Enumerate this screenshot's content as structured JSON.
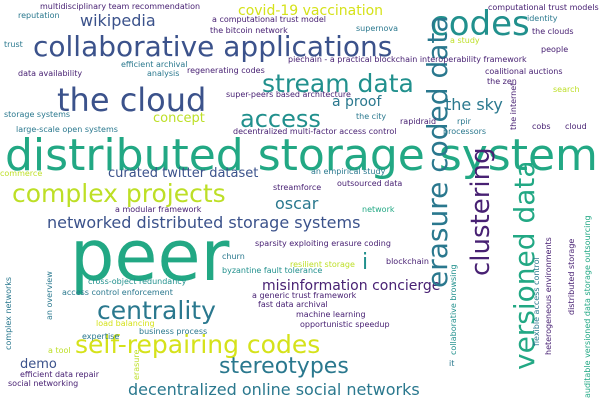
{
  "palette": {
    "navy": "#3b528b",
    "indigo": "#472c7a",
    "purple": "#482173",
    "teal": "#21908d",
    "sea": "#2a788e",
    "green": "#22a884",
    "lime": "#bddf26",
    "yellow": "#d5e21a"
  },
  "words": [
    {
      "id": "w-peer",
      "text": "peer",
      "color": "green"
    },
    {
      "id": "w-distributed-storage-systems",
      "text": "distributed storage systems",
      "color": "green"
    },
    {
      "id": "w-collaborative-applications",
      "text": "collaborative applications",
      "color": "navy"
    },
    {
      "id": "w-the-cloud",
      "text": "the cloud",
      "color": "navy"
    },
    {
      "id": "w-codes",
      "text": "codes",
      "color": "teal"
    },
    {
      "id": "w-stream-data",
      "text": "stream data",
      "color": "teal"
    },
    {
      "id": "w-access",
      "text": "access",
      "color": "teal"
    },
    {
      "id": "w-complex-projects",
      "text": "complex projects",
      "color": "lime"
    },
    {
      "id": "w-self-repairing-codes",
      "text": "self-repairing codes",
      "color": "yellow"
    },
    {
      "id": "w-centrality",
      "text": "centrality",
      "color": "sea"
    },
    {
      "id": "w-stereotypes",
      "text": "stereotypes",
      "color": "sea"
    },
    {
      "id": "w-decentralized-online-social-networks",
      "text": "decentralized online social networks",
      "color": "sea"
    },
    {
      "id": "w-networked-distributed-storage-systems",
      "text": "networked distributed storage systems",
      "color": "navy"
    },
    {
      "id": "w-misinformation-concierge",
      "text": "misinformation concierge",
      "color": "purple"
    },
    {
      "id": "w-wikipedia",
      "text": "wikipedia",
      "color": "navy"
    },
    {
      "id": "w-covid-19-vaccination",
      "text": "covid-19 vaccination",
      "color": "yellow"
    },
    {
      "id": "w-the-sky",
      "text": "the sky",
      "color": "sea"
    },
    {
      "id": "w-a-proof",
      "text": "a proof",
      "color": "sea"
    },
    {
      "id": "w-concept",
      "text": "concept",
      "color": "lime"
    },
    {
      "id": "w-curated-twitter-dataset",
      "text": "curated twitter dataset",
      "color": "navy"
    },
    {
      "id": "w-oscar",
      "text": "oscar",
      "color": "sea"
    },
    {
      "id": "w-i",
      "text": "i",
      "color": "teal"
    },
    {
      "id": "w-demo",
      "text": "demo",
      "color": "navy"
    },
    {
      "id": "w-erasure-coded-data",
      "text": "erasure coded data",
      "color": "sea"
    },
    {
      "id": "w-clustering",
      "text": "clustering",
      "color": "purple"
    },
    {
      "id": "w-versioned-data",
      "text": "versioned data",
      "color": "green"
    },
    {
      "id": "w-multidisciplinary-team-recommendation",
      "text": "multidisciplinary team recommendation",
      "color": "purple"
    },
    {
      "id": "w-reputation",
      "text": "reputation",
      "color": "sea"
    },
    {
      "id": "w-trust",
      "text": "trust",
      "color": "sea"
    },
    {
      "id": "w-a-computational-trust-model",
      "text": "a computational trust model",
      "color": "purple"
    },
    {
      "id": "w-the-bitcoin-network",
      "text": "the bitcoin network",
      "color": "purple"
    },
    {
      "id": "w-supernova",
      "text": "supernova",
      "color": "sea"
    },
    {
      "id": "w-computational-trust-models",
      "text": "computational trust models",
      "color": "purple"
    },
    {
      "id": "w-identity",
      "text": "identity",
      "color": "sea"
    },
    {
      "id": "w-the-clouds",
      "text": "the clouds",
      "color": "purple"
    },
    {
      "id": "w-a-study",
      "text": "a study",
      "color": "lime"
    },
    {
      "id": "w-people",
      "text": "people",
      "color": "purple"
    },
    {
      "id": "w-piechain",
      "text": "piechain - a practical blockchain interoperability framework",
      "color": "purple"
    },
    {
      "id": "w-coalitional-auctions",
      "text": "coalitional auctions",
      "color": "purple"
    },
    {
      "id": "w-the-zen",
      "text": "the zen",
      "color": "purple"
    },
    {
      "id": "w-search",
      "text": "search",
      "color": "lime"
    },
    {
      "id": "w-efficient-archival",
      "text": "efficient archival",
      "color": "sea"
    },
    {
      "id": "w-analysis",
      "text": "analysis",
      "color": "sea"
    },
    {
      "id": "w-regenerating-codes",
      "text": "regenerating codes",
      "color": "purple"
    },
    {
      "id": "w-data-availability",
      "text": "data availability",
      "color": "purple"
    },
    {
      "id": "w-super-peers",
      "text": "super-peers based architecture",
      "color": "purple"
    },
    {
      "id": "w-storage-systems",
      "text": "storage systems",
      "color": "sea"
    },
    {
      "id": "w-large-scale-open-systems",
      "text": "large-scale open systems",
      "color": "sea"
    },
    {
      "id": "w-the-city",
      "text": "the city",
      "color": "sea"
    },
    {
      "id": "w-rapidraid",
      "text": "rapidraid",
      "color": "purple"
    },
    {
      "id": "w-rpir",
      "text": "rpir",
      "color": "sea"
    },
    {
      "id": "w-processors",
      "text": "processors",
      "color": "sea"
    },
    {
      "id": "w-decentralized-mfac",
      "text": "decentralized multi-factor access control",
      "color": "purple"
    },
    {
      "id": "w-cobs",
      "text": "cobs",
      "color": "purple"
    },
    {
      "id": "w-cloud",
      "text": "cloud",
      "color": "purple"
    },
    {
      "id": "w-commerce",
      "text": "commerce",
      "color": "lime"
    },
    {
      "id": "w-an-empirical-study",
      "text": "an empirical study",
      "color": "sea"
    },
    {
      "id": "w-a-modular-framework",
      "text": "a modular framework",
      "color": "purple"
    },
    {
      "id": "w-streamforce",
      "text": "streamforce",
      "color": "purple"
    },
    {
      "id": "w-outsourced-data",
      "text": "outsourced data",
      "color": "purple"
    },
    {
      "id": "w-network",
      "text": "network",
      "color": "green"
    },
    {
      "id": "w-sparsity",
      "text": "sparsity exploiting erasure coding",
      "color": "purple"
    },
    {
      "id": "w-byzantine",
      "text": "byzantine fault tolerance",
      "color": "teal"
    },
    {
      "id": "w-churn",
      "text": "churn",
      "color": "sea"
    },
    {
      "id": "w-resilient-storage",
      "text": "resilient storage",
      "color": "lime"
    },
    {
      "id": "w-blockchain",
      "text": "blockchain",
      "color": "purple"
    },
    {
      "id": "w-cross-object-redundancy",
      "text": "cross-object redundancy",
      "color": "teal"
    },
    {
      "id": "w-a-generic-trust-framework",
      "text": "a generic trust framework",
      "color": "purple"
    },
    {
      "id": "w-access-control-enforcement",
      "text": "access control enforcement",
      "color": "sea"
    },
    {
      "id": "w-fast-data-archival",
      "text": "fast data archival",
      "color": "purple"
    },
    {
      "id": "w-machine-learning",
      "text": "machine learning",
      "color": "purple"
    },
    {
      "id": "w-load-balancing",
      "text": "load balancing",
      "color": "yellow"
    },
    {
      "id": "w-opportunistic-speedup",
      "text": "opportunistic speedup",
      "color": "purple"
    },
    {
      "id": "w-business-process",
      "text": "business process",
      "color": "sea"
    },
    {
      "id": "w-expertise",
      "text": "expertise",
      "color": "sea"
    },
    {
      "id": "w-a-tool",
      "text": "a tool",
      "color": "lime"
    },
    {
      "id": "w-efficient-data-repair",
      "text": "efficient data repair",
      "color": "purple"
    },
    {
      "id": "w-social-networking",
      "text": "social networking",
      "color": "purple"
    },
    {
      "id": "w-it",
      "text": "it",
      "color": "sea"
    },
    {
      "id": "w-the-internet",
      "text": "the internet",
      "color": "purple"
    },
    {
      "id": "w-flexible-access-control",
      "text": "flexible access control",
      "color": "sea"
    },
    {
      "id": "w-heterogeneous-environments",
      "text": "heterogeneous environments",
      "color": "purple"
    },
    {
      "id": "w-distributed-storage",
      "text": "distributed storage",
      "color": "purple"
    },
    {
      "id": "w-auditable-versioned",
      "text": "auditable versioned data storage outsourcing",
      "color": "green"
    },
    {
      "id": "w-collaborative-browsing",
      "text": "collaborative browsing",
      "color": "teal"
    },
    {
      "id": "w-an-overview",
      "text": "an overview",
      "color": "sea"
    },
    {
      "id": "w-complex-networks",
      "text": "complex networks",
      "color": "sea"
    },
    {
      "id": "w-erasure",
      "text": "erasure",
      "color": "lime"
    }
  ]
}
